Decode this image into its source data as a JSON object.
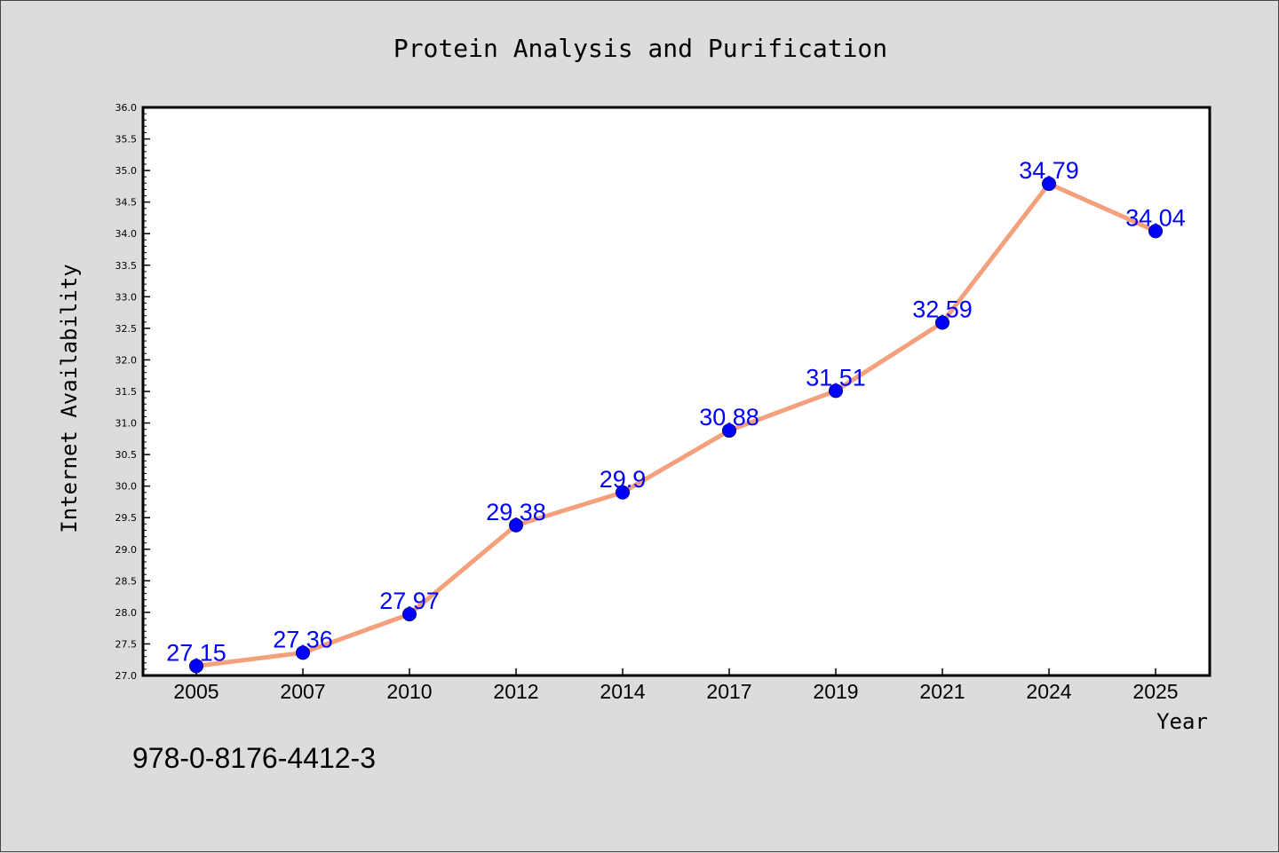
{
  "chart_data": {
    "type": "line",
    "title": "Protein Analysis and Purification",
    "xlabel": "Year",
    "ylabel": "Internet Availability",
    "categories": [
      "2005",
      "2007",
      "2010",
      "2012",
      "2014",
      "2017",
      "2019",
      "2021",
      "2024",
      "2025"
    ],
    "values": [
      27.15,
      27.36,
      27.97,
      29.38,
      29.9,
      30.88,
      31.51,
      32.59,
      34.79,
      34.04
    ],
    "value_labels": [
      "27.15",
      "27.36",
      "27.97",
      "29.38",
      "29.9",
      "30.88",
      "31.51",
      "32.59",
      "34.79",
      "34.04"
    ],
    "ylim": [
      27.0,
      36.0
    ],
    "yticks": [
      "27.0",
      "27.5",
      "28.0",
      "28.5",
      "29.0",
      "29.5",
      "30.0",
      "30.5",
      "31.0",
      "31.5",
      "32.0",
      "32.5",
      "33.0",
      "33.5",
      "34.0",
      "34.5",
      "35.0",
      "35.5",
      "36.0"
    ],
    "grid": false,
    "legend": "none",
    "colors": {
      "line": "#f4a07c",
      "marker": "#0000ff",
      "label": "#0000ff",
      "background": "#dcdcdc",
      "plot_background": "#ffffff"
    }
  },
  "annotation": "978-0-8176-4412-3"
}
